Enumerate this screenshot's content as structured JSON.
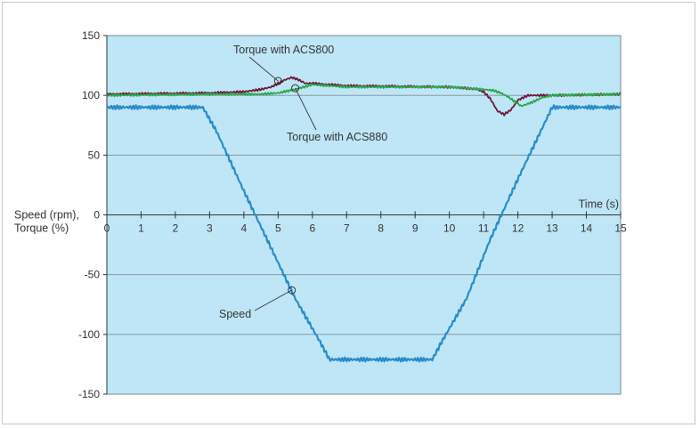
{
  "chart_data": {
    "type": "line",
    "xlabel": "Time (s)",
    "ylabel_line1": "Speed (rpm),",
    "ylabel_line2": "Torque (%)",
    "xlim": [
      0,
      15
    ],
    "ylim": [
      -150,
      150
    ],
    "x_ticks": [
      "0",
      "1",
      "2",
      "3",
      "4",
      "5",
      "6",
      "7",
      "8",
      "9",
      "10",
      "11",
      "12",
      "13",
      "14",
      "15"
    ],
    "y_ticks": [
      "150",
      "100",
      "50",
      "0",
      "-50",
      "-100",
      "-150"
    ],
    "grid": "horizontal",
    "colors": {
      "plot_bg": "#bfe6f7",
      "speed": "#2a8cc8",
      "acs800": "#6e1838",
      "acs880": "#2aa84a"
    },
    "series": [
      {
        "name": "Speed",
        "x": [
          0,
          2.8,
          3.2,
          4.0,
          5.0,
          5.5,
          6.2,
          6.5,
          9.5,
          9.8,
          10.5,
          11.2,
          12.0,
          12.5,
          13.0,
          15.0
        ],
        "y": [
          90,
          90,
          70,
          20,
          -40,
          -70,
          -105,
          -121,
          -121,
          -105,
          -70,
          -20,
          30,
          60,
          90,
          90
        ]
      },
      {
        "name": "Torque with ACS800",
        "x": [
          0,
          3.0,
          4.0,
          4.5,
          4.8,
          5.0,
          5.2,
          5.4,
          5.6,
          5.8,
          6.0,
          7.0,
          10.0,
          10.5,
          10.8,
          11.0,
          11.2,
          11.4,
          11.6,
          11.8,
          12.0,
          12.3,
          13.0,
          15.0
        ],
        "y": [
          101,
          102,
          103,
          105,
          107,
          110,
          113,
          115,
          113,
          110,
          110,
          108,
          107,
          106,
          105,
          103,
          97,
          87,
          84,
          88,
          96,
          100,
          100,
          101
        ]
      },
      {
        "name": "Torque with ACS880",
        "x": [
          0,
          3.0,
          4.5,
          5.0,
          5.5,
          6.0,
          7.0,
          10.0,
          11.0,
          11.3,
          11.5,
          11.7,
          11.9,
          12.1,
          12.4,
          12.7,
          13.0,
          15.0
        ],
        "y": [
          100,
          101,
          101,
          102,
          105,
          109,
          107,
          107,
          105,
          104,
          102,
          99,
          95,
          91,
          94,
          98,
          100,
          101
        ]
      }
    ],
    "annotations": [
      {
        "text": "Torque with ACS800",
        "series": "Torque with ACS800",
        "x": 5.0,
        "y": 112
      },
      {
        "text": "Torque with ACS880",
        "series": "Torque with ACS880",
        "x": 5.5,
        "y": 106
      },
      {
        "text": "Speed",
        "series": "Speed",
        "x": 5.4,
        "y": -63
      }
    ]
  }
}
